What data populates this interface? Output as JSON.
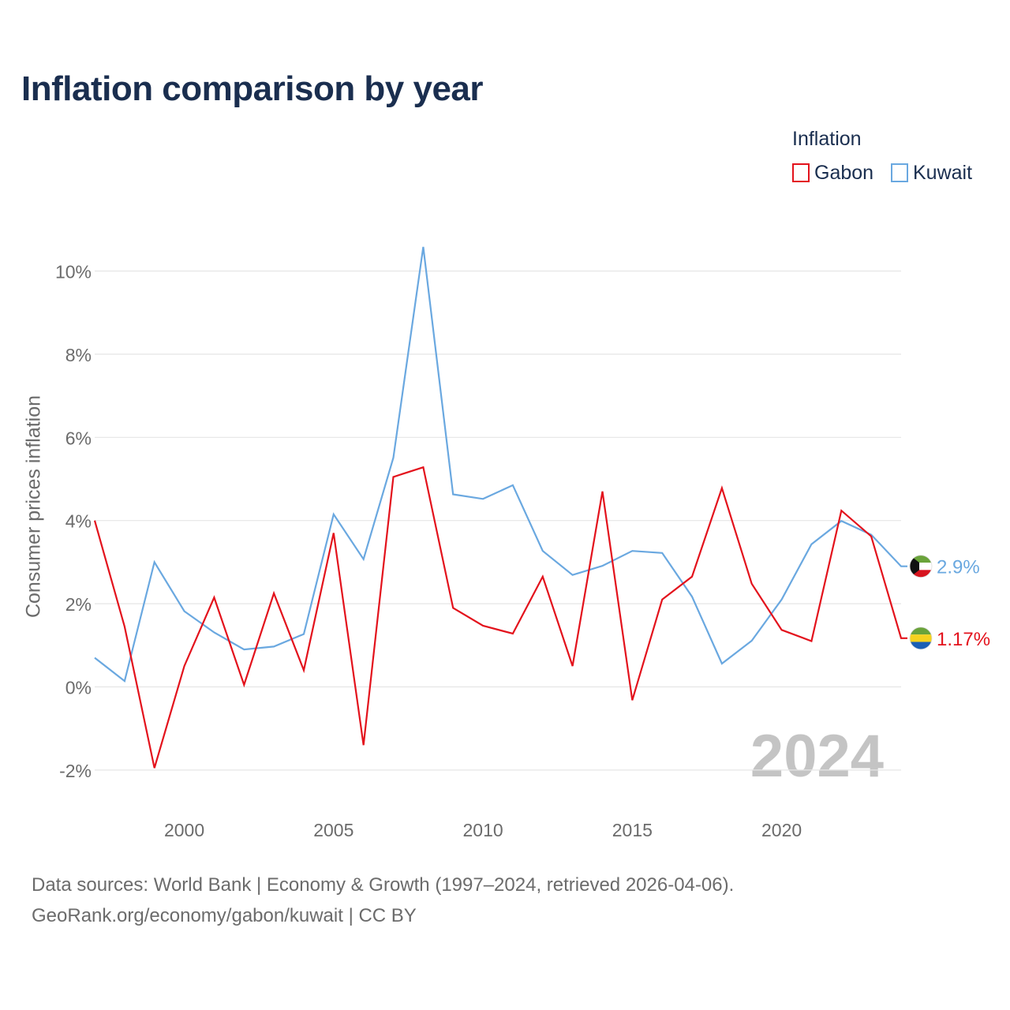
{
  "title": "Inflation comparison by year",
  "legend": {
    "title": "Inflation",
    "items": [
      {
        "name": "Gabon",
        "color": "#e3121c"
      },
      {
        "name": "Kuwait",
        "color": "#6aa8e0"
      }
    ]
  },
  "footer": {
    "line1": "Data sources: World Bank | Economy & Growth (1997–2024, retrieved 2026-04-06).",
    "line2": "GeoRank.org/economy/gabon/kuwait | CC BY"
  },
  "chart_data": {
    "type": "line",
    "title": "Inflation comparison by year",
    "xlabel": "",
    "ylabel": "Consumer prices inflation",
    "xlim": [
      1997,
      2024
    ],
    "ylim": [
      -2.5,
      10.8
    ],
    "x_ticks": [
      2000,
      2005,
      2010,
      2015,
      2020
    ],
    "y_ticks": [
      -2,
      0,
      2,
      4,
      6,
      8,
      10
    ],
    "y_tick_labels": [
      "-2%",
      "0%",
      "2%",
      "4%",
      "6%",
      "8%",
      "10%"
    ],
    "grid": true,
    "legend_position": "top-right",
    "watermark_year": "2024",
    "x": [
      1997,
      1998,
      1999,
      2000,
      2001,
      2002,
      2003,
      2004,
      2005,
      2006,
      2007,
      2008,
      2009,
      2010,
      2011,
      2012,
      2013,
      2014,
      2015,
      2016,
      2017,
      2018,
      2019,
      2020,
      2021,
      2022,
      2023,
      2024
    ],
    "series": [
      {
        "name": "Gabon",
        "color": "#e3121c",
        "end_label": "1.17%",
        "flag": "gabon-flag",
        "values": [
          4.0,
          1.45,
          -1.95,
          0.5,
          2.15,
          0.05,
          2.25,
          0.4,
          3.7,
          -1.4,
          5.05,
          5.28,
          1.9,
          1.47,
          1.28,
          2.65,
          0.5,
          4.7,
          -0.32,
          2.1,
          2.65,
          4.78,
          2.48,
          1.37,
          1.1,
          4.24,
          3.62,
          1.17
        ]
      },
      {
        "name": "Kuwait",
        "color": "#6aa8e0",
        "end_label": "2.9%",
        "flag": "kuwait-flag",
        "values": [
          0.7,
          0.14,
          3.0,
          1.82,
          1.31,
          0.9,
          0.97,
          1.27,
          4.15,
          3.07,
          5.51,
          10.58,
          4.63,
          4.52,
          4.85,
          3.27,
          2.69,
          2.91,
          3.27,
          3.22,
          2.17,
          0.56,
          1.11,
          2.1,
          3.43,
          3.99,
          3.66,
          2.9
        ]
      }
    ]
  }
}
